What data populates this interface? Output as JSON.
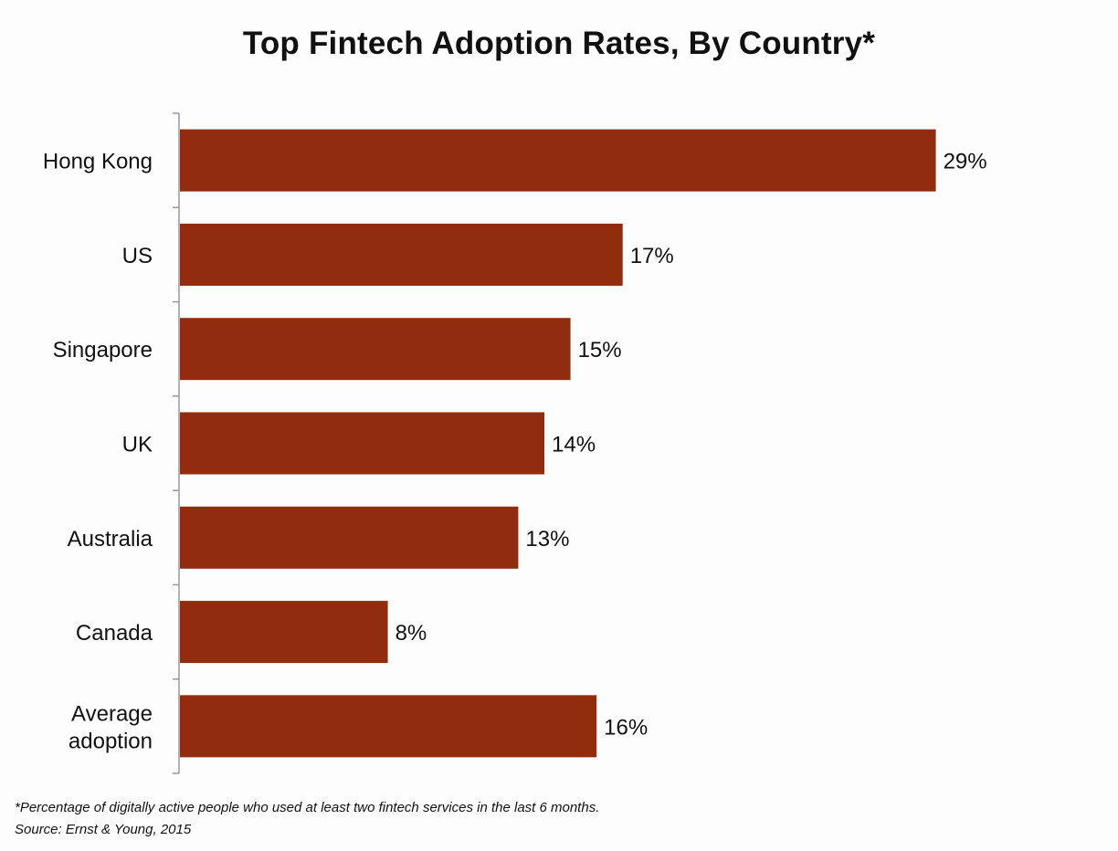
{
  "chart_data": {
    "type": "bar",
    "orientation": "horizontal",
    "title": "Top Fintech Adoption Rates, By Country*",
    "categories": [
      "Hong Kong",
      "US",
      "Singapore",
      "UK",
      "Australia",
      "Canada",
      "Average adoption"
    ],
    "category_lines": [
      [
        "Hong Kong"
      ],
      [
        "US"
      ],
      [
        "Singapore"
      ],
      [
        "UK"
      ],
      [
        "Australia"
      ],
      [
        "Canada"
      ],
      [
        "Average",
        "adoption"
      ]
    ],
    "values": [
      29,
      17,
      15,
      14,
      13,
      8,
      16
    ],
    "value_labels": [
      "29%",
      "17%",
      "15%",
      "14%",
      "13%",
      "8%",
      "16%"
    ],
    "unit": "%",
    "xlim": [
      0,
      35
    ],
    "bar_color": "#922c0e",
    "grid": false,
    "legend": "none",
    "xlabel": "",
    "ylabel": ""
  },
  "footnote": "*Percentage of digitally active people who used at least two fintech services in the last 6 months.",
  "source": "Source: Ernst & Young, 2015"
}
